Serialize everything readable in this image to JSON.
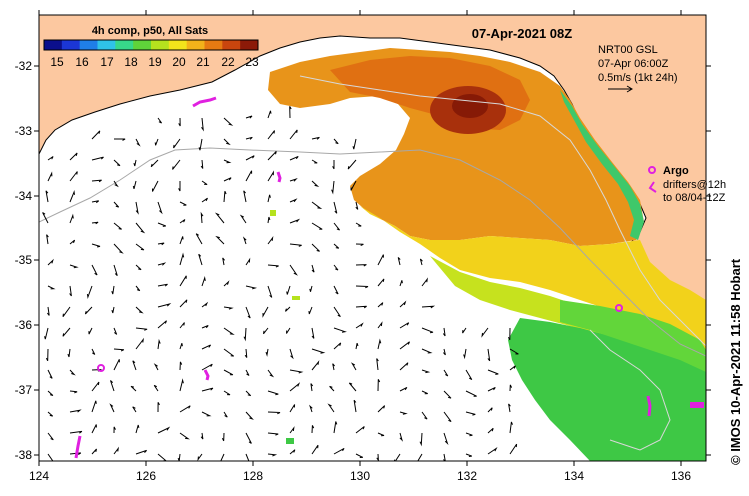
{
  "map": {
    "title": "07-Apr-2021 08Z",
    "colorbar": {
      "title": "4h comp, p50, All Sats",
      "ticks": [
        "15",
        "16",
        "17",
        "18",
        "19",
        "20",
        "21",
        "22",
        "23"
      ],
      "colors": [
        "#0b0f8c",
        "#1b36d6",
        "#1f7fe8",
        "#2fc3e8",
        "#37d88a",
        "#5fd33a",
        "#b5e21e",
        "#f2e31b",
        "#f2b21a",
        "#e67a12",
        "#c9450e",
        "#8c1a08"
      ]
    },
    "current_info": {
      "line1": "NRT00 GSL",
      "line2": "07-Apr 06:00Z",
      "line3": "0.5m/s (1kt 24h)"
    },
    "argo_legend": {
      "label": "Argo",
      "line1": "drifters@12h",
      "line2": "to 08/04-12Z"
    },
    "credit": "© IMOS 10-Apr-2021 11:58 Hobart",
    "x_ticks": [
      "124",
      "126",
      "128",
      "130",
      "132",
      "134",
      "136"
    ],
    "y_ticks": [
      "-32",
      "-33",
      "-34",
      "-35",
      "-36",
      "-37",
      "-38"
    ],
    "land_color": "#fcc8a0",
    "argo_color": "#e020e0"
  }
}
